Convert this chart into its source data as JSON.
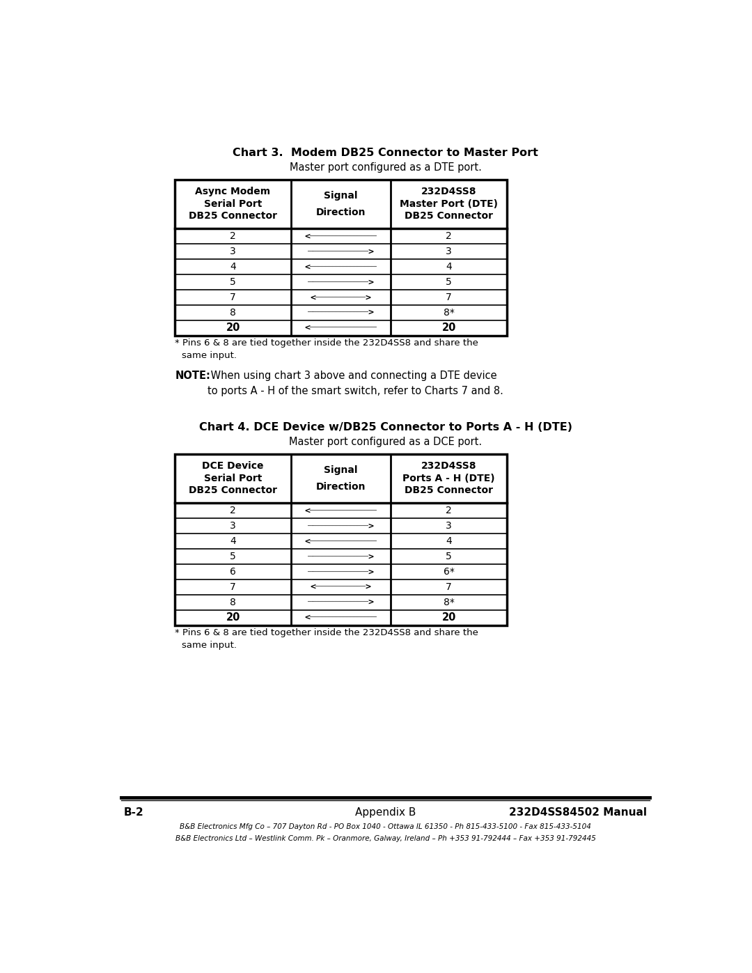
{
  "page_width": 10.8,
  "page_height": 13.97,
  "bg_color": "#ffffff",
  "chart3": {
    "title": "Chart 3.  Modem DB25 Connector to Master Port",
    "subtitle": "Master port configured as a DTE port.",
    "col1_header": [
      "Async Modem",
      "Serial Port",
      "DB25 Connector"
    ],
    "col2_header": [
      "Signal",
      "Direction"
    ],
    "col3_header": [
      "232D4SS8",
      "Master Port (DTE)",
      "DB25 Connector"
    ],
    "rows": [
      [
        "2",
        "<┈┈┈┈┈┈┈┈┈┈┈┈",
        "2"
      ],
      [
        "3",
        "┈┈┈┈┈┈┈┈┈┈┈>",
        "3"
      ],
      [
        "4",
        "<┈┈┈┈┈┈┈┈┈┈┈┈",
        "4"
      ],
      [
        "5",
        "┈┈┈┈┈┈┈┈┈┈┈>",
        "5"
      ],
      [
        "7",
        "<┈┈┈┈┈┈┈┈┈>",
        "7"
      ],
      [
        "8",
        "┈┈┈┈┈┈┈┈┈┈┈>",
        "8*"
      ],
      [
        "20",
        "<┈┈┈┈┈┈┈┈┈┈┈┈",
        "20"
      ]
    ],
    "footnote_line1": "* Pins 6 & 8 are tied together inside the 232D4SS8 and share the",
    "footnote_line2": "  same input.",
    "note_bold": "NOTE:",
    "note_rest1": " When using chart 3 above and connecting a DTE device",
    "note_rest2": "to ports A - H of the smart switch, refer to Charts 7 and 8."
  },
  "chart4": {
    "title": "Chart 4. DCE Device w/DB25 Connector to Ports A - H (DTE)",
    "subtitle": "Master port configured as a DCE port.",
    "col1_header": [
      "DCE Device",
      "Serial Port",
      "DB25 Connector"
    ],
    "col2_header": [
      "Signal",
      "Direction"
    ],
    "col3_header": [
      "232D4SS8",
      "Ports A - H (DTE)",
      "DB25 Connector"
    ],
    "rows": [
      [
        "2",
        "<┈┈┈┈┈┈┈┈┈┈┈┈",
        "2"
      ],
      [
        "3",
        "┈┈┈┈┈┈┈┈┈┈┈>",
        "3"
      ],
      [
        "4",
        "<┈┈┈┈┈┈┈┈┈┈┈┈",
        "4"
      ],
      [
        "5",
        "┈┈┈┈┈┈┈┈┈┈┈>",
        "5"
      ],
      [
        "6",
        "┈┈┈┈┈┈┈┈┈┈┈>",
        "6*"
      ],
      [
        "7",
        "<┈┈┈┈┈┈┈┈┈>",
        "7"
      ],
      [
        "8",
        "┈┈┈┈┈┈┈┈┈┈┈>",
        "8*"
      ],
      [
        "20",
        "<┈┈┈┈┈┈┈┈┈┈┈┈",
        "20"
      ]
    ],
    "footnote_line1": "* Pins 6 & 8 are tied together inside the 232D4SS8 and share the",
    "footnote_line2": "  same input."
  },
  "footer": {
    "line1_left": "B-2",
    "line1_center": "Appendix B",
    "line1_right": "232D4SS84502 Manual",
    "line2": "B&B Electronics Mfg Co – 707 Dayton Rd - PO Box 1040 - Ottawa IL 61350 - Ph 815-433-5100 - Fax 815-433-5104",
    "line3": "B&B Electronics Ltd – Westlink Comm. Pk – Oranmore, Galway, Ireland – Ph +353 91-792444 – Fax +353 91-792445"
  }
}
